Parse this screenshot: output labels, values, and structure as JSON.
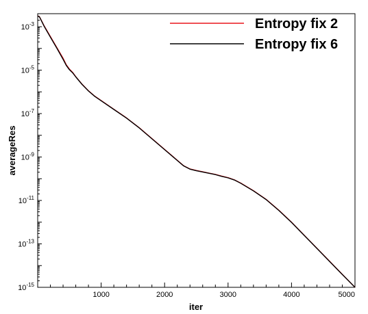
{
  "chart_data": {
    "type": "line",
    "title": "",
    "xlabel": "iter",
    "ylabel": "averageRes",
    "xlim": [
      0,
      5000
    ],
    "ylim_log10": [
      -15,
      -2.4
    ],
    "y_scale": "log",
    "x_ticks": [
      {
        "value": 1000,
        "label": "1000"
      },
      {
        "value": 2000,
        "label": "2000"
      },
      {
        "value": 3000,
        "label": "3000"
      },
      {
        "value": 4000,
        "label": "4000"
      },
      {
        "value": 5000,
        "label": "5000"
      }
    ],
    "y_ticks": [
      {
        "exp": -3,
        "base": "10",
        "sup": "-3"
      },
      {
        "exp": -5,
        "base": "10",
        "sup": "-5"
      },
      {
        "exp": -7,
        "base": "10",
        "sup": "-7"
      },
      {
        "exp": -9,
        "base": "10",
        "sup": "-9"
      },
      {
        "exp": -11,
        "base": "10",
        "sup": "-11"
      },
      {
        "exp": -13,
        "base": "10",
        "sup": "-13"
      },
      {
        "exp": -15,
        "base": "10",
        "sup": "-15"
      }
    ],
    "grid": false,
    "legend_position": "top-right",
    "series": [
      {
        "name": "Entropy fix 2",
        "color": "#e8151b",
        "x": [
          0,
          30,
          100,
          200,
          300,
          400,
          450,
          500,
          550,
          600,
          700,
          800,
          900,
          1000,
          1200,
          1400,
          1600,
          1800,
          2000,
          2200,
          2300,
          2400,
          2500,
          2600,
          2700,
          2800,
          2900,
          3000,
          3100,
          3200,
          3400,
          3600,
          3800,
          4000,
          4200,
          4400,
          4600,
          4800,
          5000
        ],
        "log10y": [
          -2.5,
          -2.55,
          -2.95,
          -3.45,
          -3.95,
          -4.45,
          -4.75,
          -4.95,
          -5.1,
          -5.3,
          -5.65,
          -5.95,
          -6.2,
          -6.4,
          -6.8,
          -7.2,
          -7.65,
          -8.15,
          -8.65,
          -9.15,
          -9.4,
          -9.55,
          -9.62,
          -9.68,
          -9.74,
          -9.8,
          -9.88,
          -9.95,
          -10.05,
          -10.2,
          -10.55,
          -10.95,
          -11.45,
          -12.0,
          -12.6,
          -13.2,
          -13.8,
          -14.4,
          -15.0
        ]
      },
      {
        "name": "Entropy fix 6",
        "color": "#000000",
        "x": [
          0,
          30,
          100,
          200,
          300,
          400,
          450,
          500,
          550,
          600,
          700,
          800,
          900,
          1000,
          1200,
          1400,
          1600,
          1800,
          2000,
          2200,
          2300,
          2400,
          2500,
          2600,
          2700,
          2800,
          2900,
          3000,
          3100,
          3200,
          3400,
          3600,
          3800,
          4000,
          4200,
          4400,
          4600,
          4800,
          5000
        ],
        "log10y": [
          -2.5,
          -2.56,
          -2.97,
          -3.48,
          -3.98,
          -4.5,
          -4.78,
          -4.98,
          -5.12,
          -5.31,
          -5.66,
          -5.96,
          -6.21,
          -6.41,
          -6.81,
          -7.21,
          -7.66,
          -8.16,
          -8.66,
          -9.16,
          -9.41,
          -9.56,
          -9.63,
          -9.69,
          -9.75,
          -9.81,
          -9.89,
          -9.96,
          -10.06,
          -10.21,
          -10.56,
          -10.96,
          -11.46,
          -12.01,
          -12.61,
          -13.21,
          -13.81,
          -14.41,
          -15.0
        ]
      }
    ]
  }
}
